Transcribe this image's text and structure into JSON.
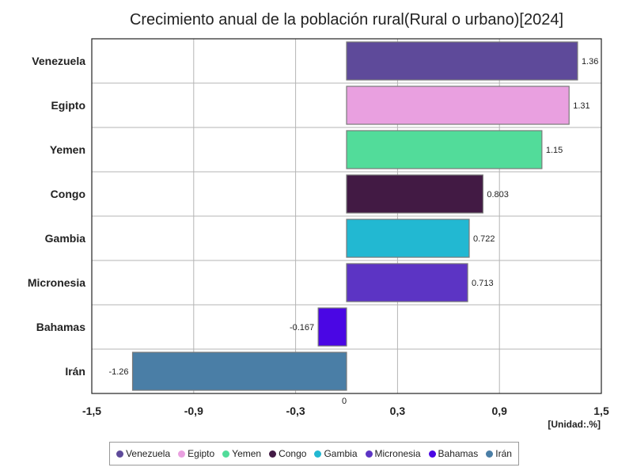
{
  "chart_data": {
    "type": "bar",
    "orientation": "horizontal",
    "title": "Crecimiento anual de la población rural(Rural o urbano)[2024]",
    "unit_label": "[Unidad:.%]",
    "categories": [
      "Venezuela",
      "Egipto",
      "Yemen",
      "Congo",
      "Gambia",
      "Micronesia",
      "Bahamas",
      "Irán"
    ],
    "values": [
      1.36,
      1.31,
      1.15,
      0.803,
      0.722,
      0.713,
      -0.167,
      -1.26
    ],
    "value_labels": [
      "1.36",
      "1.31",
      "1.15",
      "0.803",
      "0.722",
      "0.713",
      "-0.167",
      "-1.26"
    ],
    "colors": [
      "#5e4a9a",
      "#e9a0e0",
      "#52dc9a",
      "#421a44",
      "#22b8d2",
      "#5c34c4",
      "#4a06e4",
      "#4a7ea6"
    ],
    "xlim": [
      -1.5,
      1.5
    ],
    "x_ticks": [
      -1.5,
      -0.9,
      -0.3,
      0.3,
      0.9,
      1.5
    ],
    "x_tick_labels": [
      "-1,5",
      "-0,9",
      "-0,3",
      "0,3",
      "0,9",
      "1,5"
    ],
    "zero_label": "0",
    "grid": true,
    "legend_position": "bottom"
  }
}
